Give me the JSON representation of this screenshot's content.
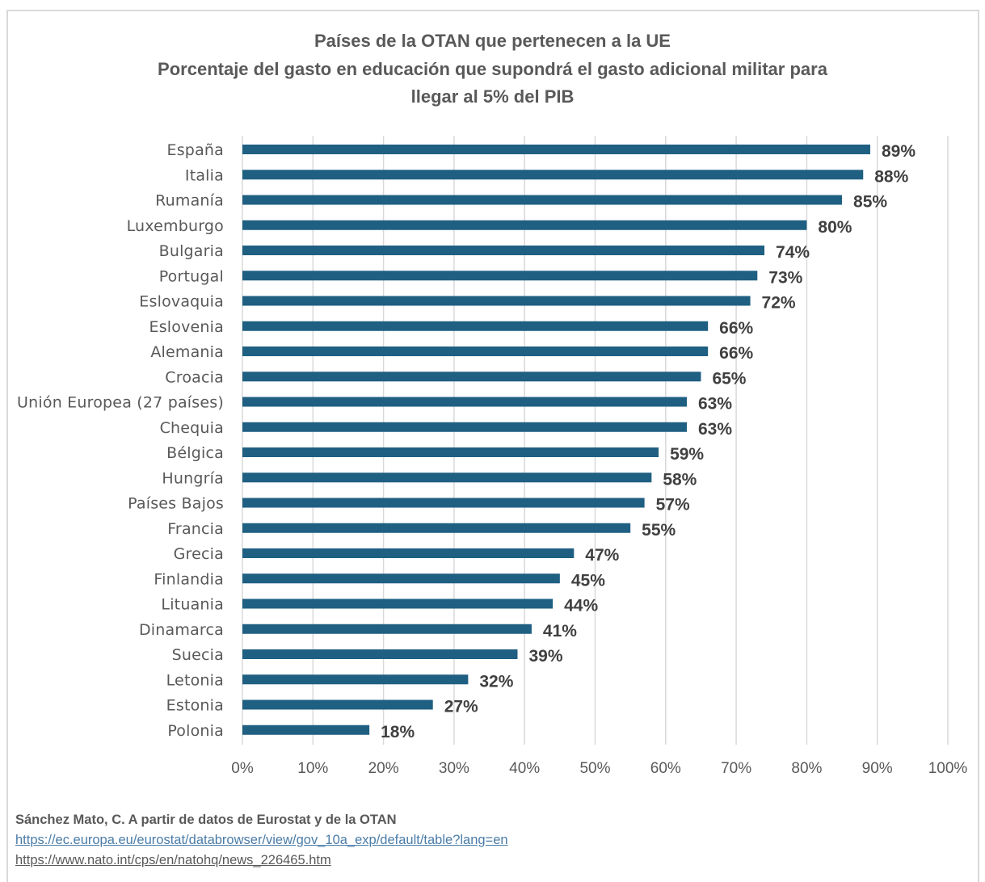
{
  "chart_data": {
    "type": "bar",
    "orientation": "horizontal",
    "title_lines": [
      "Países de la OTAN que pertenecen a la UE",
      "Porcentaje del gasto en educación que supondrá el gasto adicional militar para",
      "llegar al 5% del PIB"
    ],
    "categories": [
      "España",
      "Italia",
      "Rumanía",
      "Luxemburgo",
      "Bulgaria",
      "Portugal",
      "Eslovaquia",
      "Eslovenia",
      "Alemania",
      "Croacia",
      "Unión Europea (27 países)",
      "Chequia",
      "Bélgica",
      "Hungría",
      "Países Bajos",
      "Francia",
      "Grecia",
      "Finlandia",
      "Lituania",
      "Dinamarca",
      "Suecia",
      "Letonia",
      "Estonia",
      "Polonia"
    ],
    "values": [
      89,
      88,
      85,
      80,
      74,
      73,
      72,
      66,
      66,
      65,
      63,
      63,
      59,
      58,
      57,
      55,
      47,
      45,
      44,
      41,
      39,
      32,
      27,
      18
    ],
    "data_labels": [
      "89%",
      "88%",
      "85%",
      "80%",
      "74%",
      "73%",
      "72%",
      "66%",
      "66%",
      "65%",
      "63%",
      "63%",
      "59%",
      "58%",
      "57%",
      "55%",
      "47%",
      "45%",
      "44%",
      "41%",
      "39%",
      "32%",
      "27%",
      "18%"
    ],
    "x_ticks": [
      "0%",
      "10%",
      "20%",
      "30%",
      "40%",
      "50%",
      "60%",
      "70%",
      "80%",
      "90%",
      "100%"
    ],
    "xlim": [
      0,
      100
    ],
    "grid": "vertical",
    "legend": "none",
    "bar_color": "#1f5f82"
  },
  "source": {
    "author": "Sánchez Mato, C.  A partir de datos de Eurostat y de la OTAN",
    "link1": "https://ec.europa.eu/eurostat/databrowser/view/gov_10a_exp/default/table?lang=en",
    "link2": "https://www.nato.int/cps/en/natohq/news_226465.htm"
  }
}
